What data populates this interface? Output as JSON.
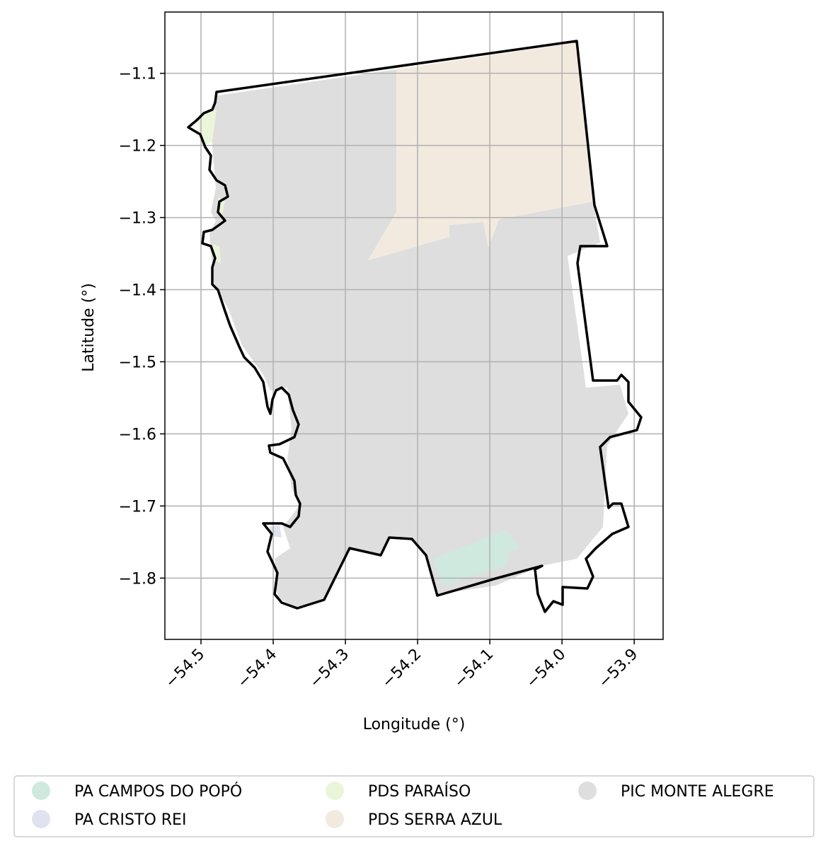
{
  "map": {
    "xlabel": "Longitude (°)",
    "ylabel": "Latitude (°)",
    "xlim": [
      -54.55,
      -53.86
    ],
    "ylim": [
      -1.885,
      -1.015
    ],
    "x_ticks": [
      {
        "value": -54.5,
        "label": "−54.5"
      },
      {
        "value": -54.4,
        "label": "−54.4"
      },
      {
        "value": -54.3,
        "label": "−54.3"
      },
      {
        "value": -54.2,
        "label": "−54.2"
      },
      {
        "value": -54.1,
        "label": "−54.1"
      },
      {
        "value": -54.0,
        "label": "−54.0"
      },
      {
        "value": -53.9,
        "label": "−53.9"
      }
    ],
    "y_ticks": [
      {
        "value": -1.1,
        "label": "−1.1"
      },
      {
        "value": -1.2,
        "label": "−1.2"
      },
      {
        "value": -1.3,
        "label": "−1.3"
      },
      {
        "value": -1.4,
        "label": "−1.4"
      },
      {
        "value": -1.5,
        "label": "−1.5"
      },
      {
        "value": -1.6,
        "label": "−1.6"
      },
      {
        "value": -1.7,
        "label": "−1.7"
      },
      {
        "value": -1.8,
        "label": "−1.8"
      }
    ],
    "grid": true,
    "legend_position": "bottom",
    "legend": [
      {
        "label": "PA CAMPOS DO POPÓ",
        "color": "#cfe9df"
      },
      {
        "label": "PA CRISTO REI",
        "color": "#dfe3ef"
      },
      {
        "label": "PDS PARAÍSO",
        "color": "#eaf5da"
      },
      {
        "label": "PDS SERRA AZUL",
        "color": "#f3eadf"
      },
      {
        "label": "PIC MONTE ALEGRE",
        "color": "#dedede"
      }
    ]
  }
}
